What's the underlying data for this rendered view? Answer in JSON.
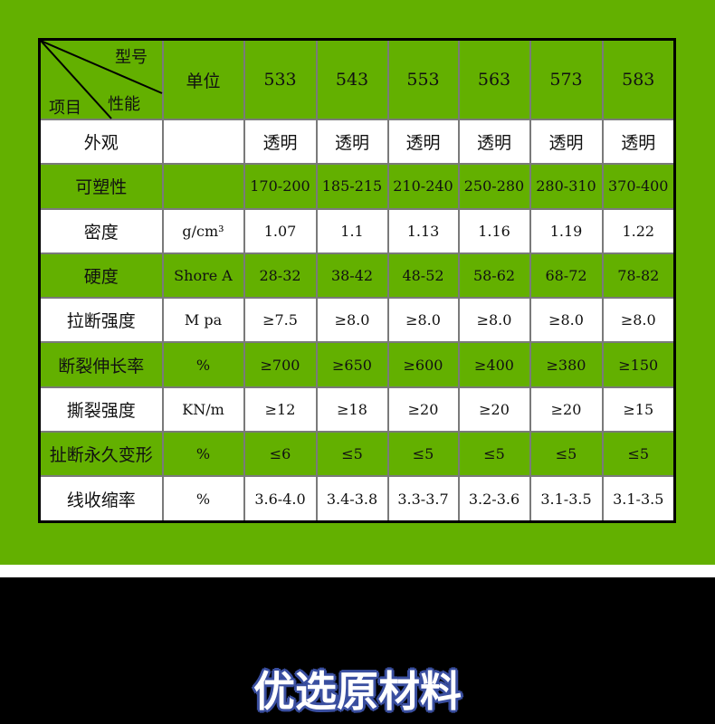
{
  "header": {
    "corner_model": "型号",
    "corner_property": "性能",
    "corner_item": "项目",
    "unit": "单位",
    "models": [
      "533",
      "543",
      "553",
      "563",
      "573",
      "583"
    ]
  },
  "rows": [
    {
      "label": "外观",
      "unit": "",
      "values": [
        "透明",
        "透明",
        "透明",
        "透明",
        "透明",
        "透明"
      ],
      "bg": "white"
    },
    {
      "label": "可塑性",
      "unit": "",
      "values": [
        "170-200",
        "185-215",
        "210-240",
        "250-280",
        "280-310",
        "370-400"
      ],
      "bg": "green"
    },
    {
      "label": "密度",
      "unit": "g/cm³",
      "values": [
        "1.07",
        "1.1",
        "1.13",
        "1.16",
        "1.19",
        "1.22"
      ],
      "bg": "white"
    },
    {
      "label": "硬度",
      "unit": "Shore A",
      "values": [
        "28-32",
        "38-42",
        "48-52",
        "58-62",
        "68-72",
        "78-82"
      ],
      "bg": "green"
    },
    {
      "label": "拉断强度",
      "unit": "M pa",
      "values": [
        "≥7.5",
        "≥8.0",
        "≥8.0",
        "≥8.0",
        "≥8.0",
        "≥8.0"
      ],
      "bg": "white"
    },
    {
      "label": "断裂伸长率",
      "unit": "%",
      "values": [
        "≥700",
        "≥650",
        "≥600",
        "≥400",
        "≥380",
        "≥150"
      ],
      "bg": "green"
    },
    {
      "label": "撕裂强度",
      "unit": "KN/m",
      "values": [
        "≥12",
        "≥18",
        "≥20",
        "≥20",
        "≥20",
        "≥15"
      ],
      "bg": "white"
    },
    {
      "label": "扯断永久变形",
      "unit": "%",
      "values": [
        "≤6",
        "≤5",
        "≤5",
        "≤5",
        "≤5",
        "≤5"
      ],
      "bg": "green"
    },
    {
      "label": "线收缩率",
      "unit": "%",
      "values": [
        "3.6-4.0",
        "3.4-3.8",
        "3.3-3.7",
        "3.2-3.6",
        "3.1-3.5",
        "3.1-3.5"
      ],
      "bg": "white"
    }
  ],
  "section_title": "优选原材料",
  "colors": {
    "green": "#63b000",
    "title_outline": "#3a4fa0"
  }
}
